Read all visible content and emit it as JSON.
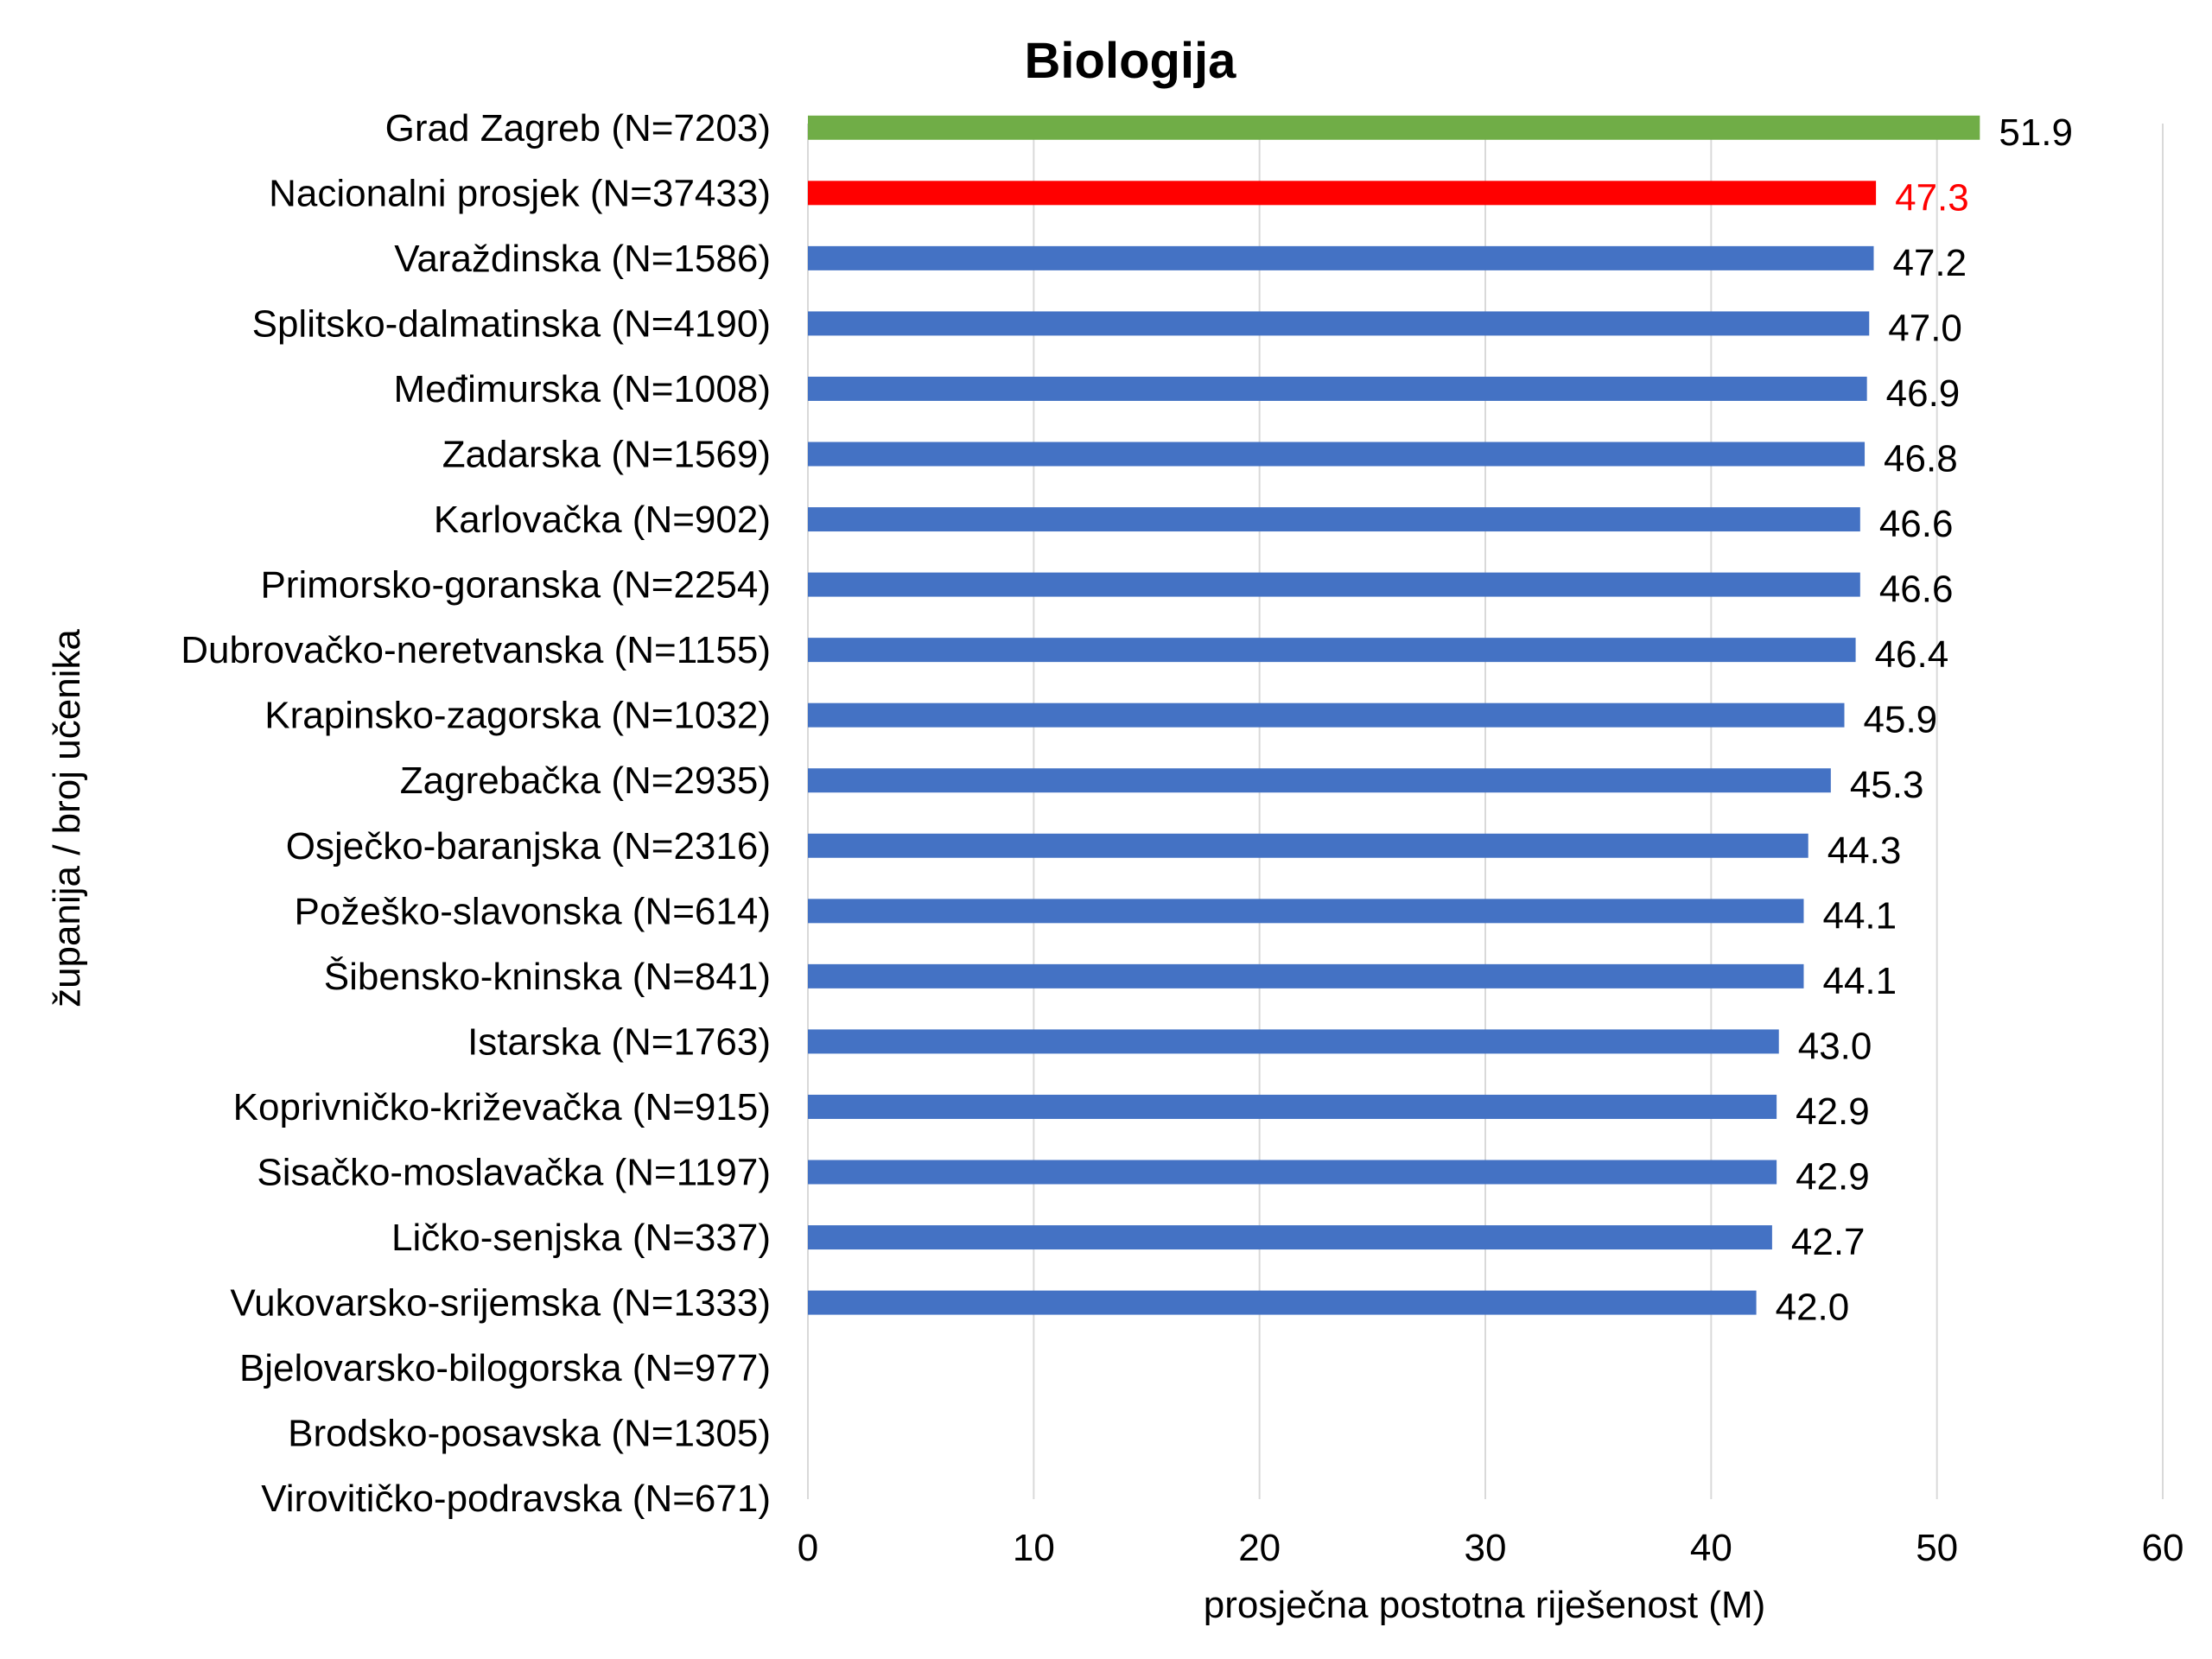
{
  "chart_data": {
    "type": "bar",
    "orientation": "horizontal",
    "title": "Biologija",
    "xlabel": "prosječna postotna riješenost (M)",
    "ylabel": "županija / broj učenika",
    "xlim": [
      0,
      60
    ],
    "xticks": [
      0,
      10,
      20,
      30,
      40,
      50,
      60
    ],
    "grid": "vertical",
    "colors": {
      "highlight": "#70ad47",
      "national": "#ff0000",
      "default": "#4472c4",
      "label": "#000000",
      "national_label": "#ff0000",
      "grid": "#d9d9d9"
    },
    "categories": [
      "Grad Zagreb (N=7203)",
      "Nacionalni prosjek (N=37433)",
      "Varaždinska (N=1586)",
      "Splitsko-dalmatinska (N=4190)",
      "Međimurska (N=1008)",
      "Zadarska (N=1569)",
      "Karlovačka (N=902)",
      "Primorsko-goranska (N=2254)",
      "Dubrovačko-neretvanska (N=1155)",
      "Krapinsko-zagorska (N=1032)",
      "Zagrebačka (N=2935)",
      "Osječko-baranjska (N=2316)",
      "Požeško-slavonska (N=614)",
      "Šibensko-kninska (N=841)",
      "Istarska (N=1763)",
      "Koprivničko-križevačka (N=915)",
      "Sisačko-moslavačka (N=1197)",
      "Ličko-senjska (N=337)",
      "Vukovarsko-srijemska (N=1333)",
      "Bjelovarsko-bilogorska (N=977)",
      "Brodsko-posavska (N=1305)",
      "Virovitičko-podravska (N=671)"
    ],
    "values": [
      51.9,
      47.3,
      47.2,
      47.0,
      46.9,
      46.8,
      46.6,
      46.6,
      46.4,
      45.9,
      45.3,
      44.3,
      44.1,
      44.1,
      43.0,
      42.9,
      42.9,
      42.7,
      42.0,
      null,
      null,
      null
    ],
    "value_labels": [
      "51.9",
      "47.3",
      "47.2",
      "47.0",
      "46.9",
      "46.8",
      "46.6",
      "46.6",
      "46.4",
      "45.9",
      "45.3",
      "44.3",
      "44.1",
      "44.1",
      "43.0",
      "42.9",
      "42.9",
      "42.7",
      "42.0",
      "",
      "",
      ""
    ],
    "bar_color_keys": [
      "highlight",
      "national",
      "default",
      "default",
      "default",
      "default",
      "default",
      "default",
      "default",
      "default",
      "default",
      "default",
      "default",
      "default",
      "default",
      "default",
      "default",
      "default",
      "default",
      "default",
      "default",
      "default"
    ]
  }
}
